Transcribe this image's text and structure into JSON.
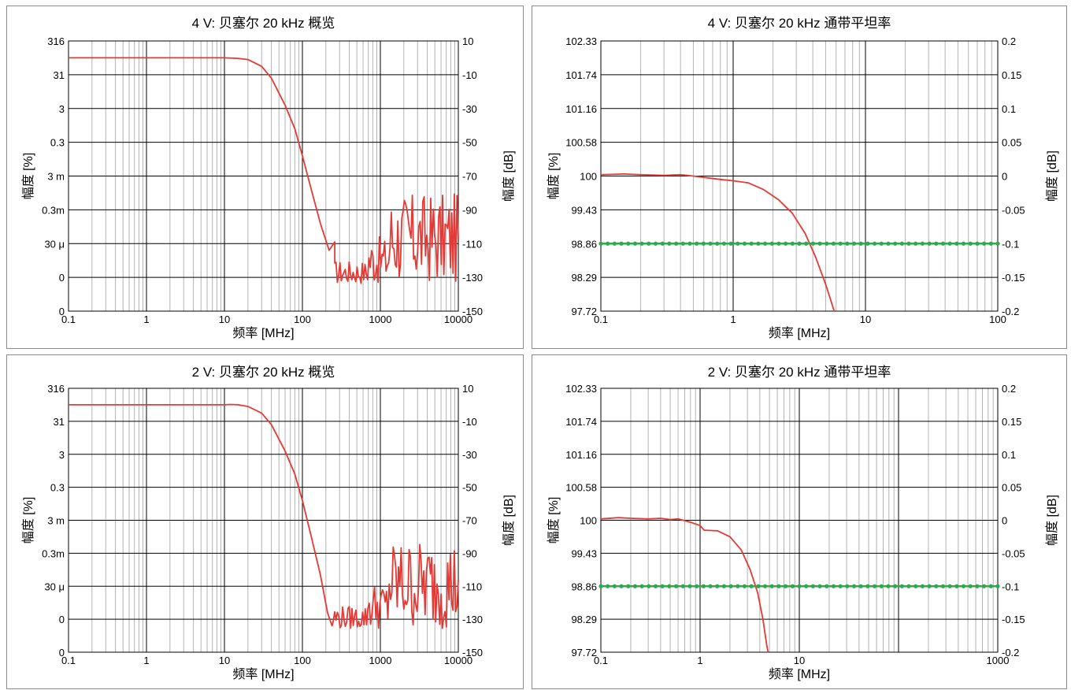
{
  "chart_data": [
    {
      "panel": "top-left",
      "type": "line",
      "title": "4 V: 贝塞尔 20 kHz 概览",
      "xlabel": "频率 [MHz]",
      "ylabel_left": "幅度 [%]",
      "ylabel_right": "幅度 [dB]",
      "x_scale": "log",
      "xlim": [
        0.1,
        10000
      ],
      "x_tick_labels": [
        "0.1",
        "1",
        "10",
        "100",
        "1000",
        "10000"
      ],
      "ylim_db": [
        -150,
        10
      ],
      "y_tick_labels_left": [
        "316",
        "31",
        "3",
        "0.3",
        "3 m",
        "0.3m",
        "30 μ",
        "0",
        "0"
      ],
      "y_tick_labels_right": [
        "10",
        "-10",
        "-30",
        "-50",
        "-70",
        "-90",
        "-110",
        "-130",
        "-150"
      ],
      "grid": true,
      "series": [
        {
          "color": "#e53935",
          "x": [
            0.1,
            1,
            10,
            15,
            20,
            30,
            40,
            60,
            80,
            100,
            130,
            170,
            220,
            260
          ],
          "y_db": [
            0,
            0,
            0,
            -0.3,
            -1,
            -5,
            -12,
            -28,
            -42,
            -58,
            -78,
            -98,
            -114,
            -109
          ]
        }
      ],
      "noise_floor_db": [
        -134,
        -78
      ],
      "noise_start_mhz": 250
    },
    {
      "panel": "top-right",
      "type": "line",
      "title": "4 V: 贝塞尔 20 kHz 通带平坦率",
      "xlabel": "频率 [MHz]",
      "ylabel_left": "幅度 [%]",
      "ylabel_right": "幅度 [dB]",
      "x_scale": "log",
      "xlim": [
        0.1,
        100
      ],
      "x_tick_labels": [
        "0.1",
        "1",
        "10",
        "100"
      ],
      "ylim_db": [
        -0.2,
        0.2
      ],
      "y_tick_labels_left": [
        "102.33",
        "101.74",
        "101.16",
        "100.58",
        "100",
        "99.43",
        "98.86",
        "98.29",
        "97.72"
      ],
      "y_tick_labels_right": [
        "0.2",
        "0.15",
        "0.1",
        "0.05",
        "0",
        "-0.05",
        "-0.1",
        "-0.15",
        "-0.2"
      ],
      "grid": true,
      "series": [
        {
          "color": "#e53935",
          "x": [
            0.1,
            0.15,
            0.2,
            0.3,
            0.4,
            0.5,
            0.6,
            0.8,
            1,
            1.3,
            1.7,
            2.2,
            2.8,
            3.5,
            4.2,
            5,
            5.8
          ],
          "y_db": [
            0.002,
            0.003,
            0.002,
            0.001,
            0.002,
            0.0,
            -0.002,
            -0.005,
            -0.007,
            -0.01,
            -0.02,
            -0.035,
            -0.055,
            -0.085,
            -0.12,
            -0.16,
            -0.2
          ]
        },
        {
          "color": "#2fa84f",
          "type": "dotted-line",
          "x": [
            0.1,
            100
          ],
          "y_db": [
            -0.1,
            -0.1
          ]
        }
      ]
    },
    {
      "panel": "bottom-left",
      "type": "line",
      "title": "2 V: 贝塞尔 20 kHz 概览",
      "xlabel": "频率 [MHz]",
      "ylabel_left": "幅度 [%]",
      "ylabel_right": "幅度 [dB]",
      "x_scale": "log",
      "xlim": [
        0.1,
        10000
      ],
      "x_tick_labels": [
        "0.1",
        "1",
        "10",
        "100",
        "1000",
        "10000"
      ],
      "ylim_db": [
        -150,
        10
      ],
      "y_tick_labels_left": [
        "316",
        "31",
        "3",
        "0.3",
        "3 m",
        "0.3m",
        "30 μ",
        "0",
        "0"
      ],
      "y_tick_labels_right": [
        "10",
        "-10",
        "-30",
        "-50",
        "-70",
        "-90",
        "-110",
        "-130",
        "-150"
      ],
      "grid": true,
      "series": [
        {
          "color": "#e53935",
          "x": [
            0.1,
            1,
            10,
            12,
            15,
            20,
            30,
            40,
            60,
            80,
            100,
            130,
            170,
            210,
            240
          ],
          "y_db": [
            0,
            0,
            0,
            0.2,
            0,
            -1,
            -5,
            -12,
            -28,
            -42,
            -58,
            -80,
            -103,
            -126,
            -134
          ]
        }
      ],
      "noise_floor_db": [
        -136,
        -78
      ],
      "noise_start_mhz": 240
    },
    {
      "panel": "bottom-right",
      "type": "line",
      "title": "2 V: 贝塞尔 20 kHz 通带平坦率",
      "xlabel": "频率 [MHz]",
      "ylabel_left": "幅度 [%]",
      "ylabel_right": "幅度 [dB]",
      "x_scale": "log",
      "xlim": [
        0.1,
        1000
      ],
      "x_tick_labels": [
        "0.1",
        "1",
        "10",
        "1000"
      ],
      "ylim_db": [
        -0.2,
        0.2
      ],
      "y_tick_labels_left": [
        "102.33",
        "101.74",
        "101.16",
        "100.58",
        "100",
        "99.43",
        "98.86",
        "98.29",
        "97.72"
      ],
      "y_tick_labels_right": [
        "0.2",
        "0.15",
        "0.1",
        "0.05",
        "0",
        "-0.05",
        "-0.1",
        "-0.15",
        "-0.2"
      ],
      "grid": true,
      "series": [
        {
          "color": "#e53935",
          "x": [
            0.1,
            0.15,
            0.2,
            0.3,
            0.4,
            0.5,
            0.6,
            0.8,
            1.0,
            1.1,
            1.5,
            2,
            2.6,
            3.2,
            3.8,
            4.3,
            4.7,
            4.85
          ],
          "y_db": [
            0.002,
            0.004,
            0.003,
            0.002,
            0.003,
            0.001,
            0.002,
            -0.003,
            -0.008,
            -0.015,
            -0.016,
            -0.025,
            -0.045,
            -0.075,
            -0.11,
            -0.15,
            -0.19,
            -0.2
          ]
        },
        {
          "color": "#2fa84f",
          "type": "dotted-line",
          "x": [
            0.1,
            1000
          ],
          "y_db": [
            -0.1,
            -0.1
          ]
        }
      ]
    }
  ]
}
